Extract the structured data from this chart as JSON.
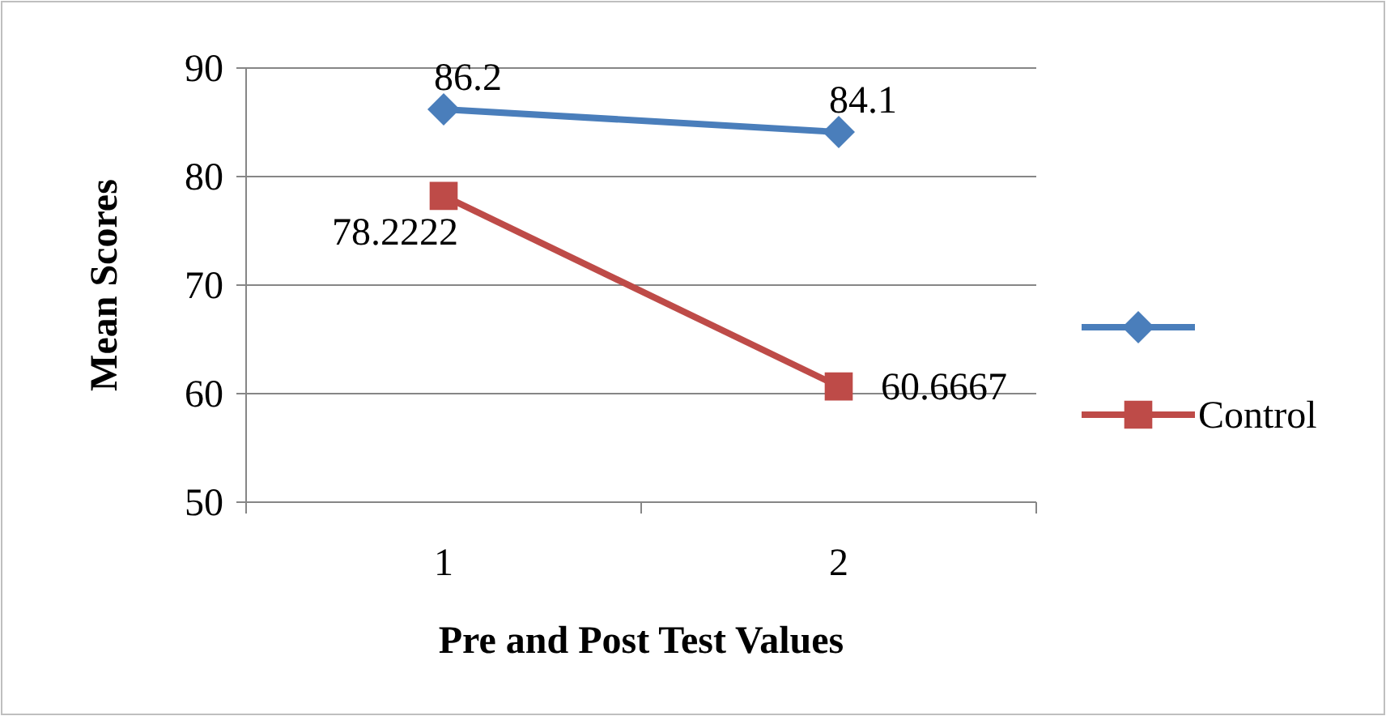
{
  "chart_data": {
    "type": "line",
    "xlabel": "Pre and Post Test Values",
    "ylabel": "Mean Scores",
    "categories": [
      "1",
      "2"
    ],
    "series": [
      {
        "color": "#4a7ebb",
        "values": [
          86.2,
          84.1
        ],
        "marker": "diamond"
      },
      {
        "name": "Control",
        "color": "#be4b48",
        "values": [
          78.2222,
          60.6667
        ],
        "marker": "square"
      }
    ],
    "ylim": [
      50,
      90
    ],
    "yticks": [
      50,
      60,
      70,
      80,
      90
    ],
    "grid": "y",
    "legend": "right",
    "data_labels": true
  }
}
